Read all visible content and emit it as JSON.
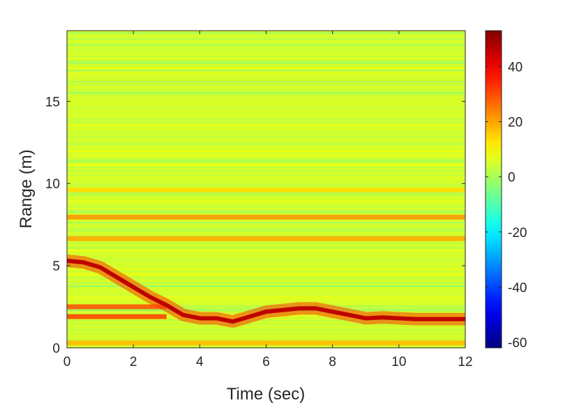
{
  "chart_data": {
    "type": "heatmap",
    "xlabel": "Time (sec)",
    "ylabel": "Range (m)",
    "xlim": [
      0,
      12
    ],
    "ylim": [
      0,
      19.3
    ],
    "x_ticks": [
      "0",
      "2",
      "4",
      "6",
      "8",
      "10",
      "12"
    ],
    "y_ticks": [
      "0",
      "5",
      "10",
      "15"
    ],
    "colormap": "jet",
    "colorbar": {
      "range": [
        -62,
        53
      ],
      "ticks": [
        "40",
        "20",
        "0",
        "-20",
        "-40",
        "-60"
      ]
    },
    "background_level_db": 5,
    "static_bands": [
      {
        "range_m": 7.95,
        "level_db": 22,
        "t_start": 0,
        "t_end": 12
      },
      {
        "range_m": 6.65,
        "level_db": 20,
        "t_start": 0,
        "t_end": 12
      },
      {
        "range_m": 2.5,
        "level_db": 30,
        "t_start": 0,
        "t_end": 3.0
      },
      {
        "range_m": 1.9,
        "level_db": 32,
        "t_start": 0,
        "t_end": 3.0
      },
      {
        "range_m": 9.6,
        "level_db": 14,
        "t_start": 0,
        "t_end": 12
      },
      {
        "range_m": 0.3,
        "level_db": 18,
        "t_start": 0,
        "t_end": 12
      }
    ],
    "target_track": {
      "time_s": [
        0,
        0.5,
        1.0,
        1.5,
        2.0,
        2.5,
        3.0,
        3.5,
        4.0,
        4.5,
        5.0,
        5.5,
        6.0,
        6.5,
        7.0,
        7.5,
        8.0,
        8.5,
        9.0,
        9.5,
        10.0,
        10.5,
        11.0,
        11.5,
        12.0
      ],
      "range_m": [
        5.3,
        5.2,
        4.9,
        4.3,
        3.7,
        3.1,
        2.6,
        2.0,
        1.8,
        1.8,
        1.6,
        1.9,
        2.2,
        2.3,
        2.4,
        2.4,
        2.2,
        2.0,
        1.8,
        1.85,
        1.8,
        1.75,
        1.75,
        1.75,
        1.75
      ],
      "level_db": 46
    }
  }
}
